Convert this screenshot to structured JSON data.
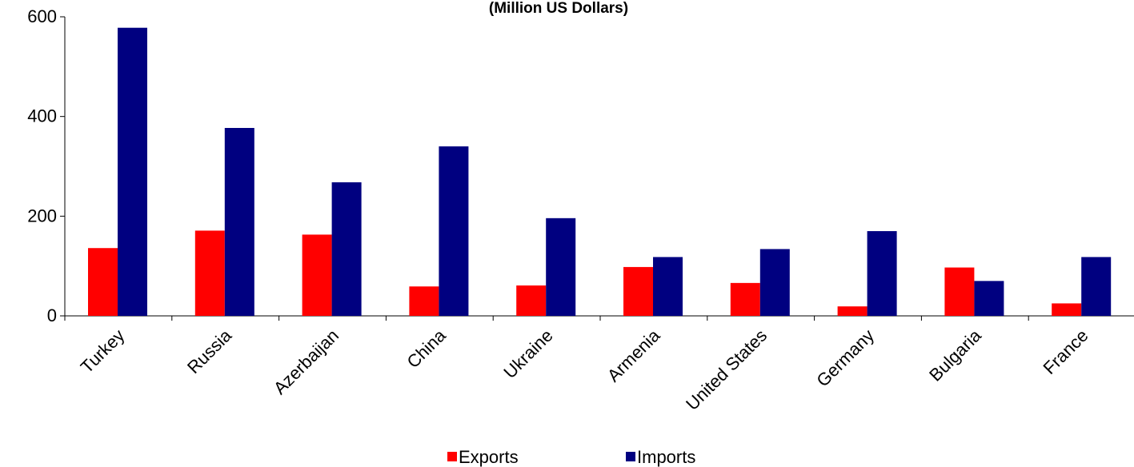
{
  "chart_data": {
    "type": "bar",
    "subtitle": "(Million US Dollars)",
    "categories": [
      "Turkey",
      "Russia",
      "Azerbaijan",
      "China",
      "Ukraine",
      "Armenia",
      "United States",
      "Germany",
      "Bulgaria",
      "France"
    ],
    "series": [
      {
        "name": "Exports",
        "color": "#ff0000",
        "values": [
          136,
          171,
          163,
          59,
          61,
          98,
          66,
          19,
          97,
          25
        ]
      },
      {
        "name": "Imports",
        "color": "#000080",
        "values": [
          578,
          377,
          268,
          340,
          196,
          118,
          134,
          170,
          70,
          118
        ]
      }
    ],
    "ylim": [
      0,
      600
    ],
    "yticks": [
      "0",
      "200",
      "400",
      "600"
    ],
    "grid": false,
    "legend_position": "bottom"
  }
}
